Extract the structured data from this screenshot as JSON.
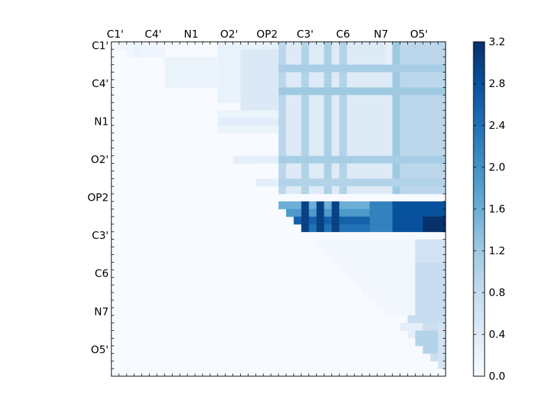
{
  "chart_data": {
    "type": "heatmap",
    "title": "",
    "xlabel": "",
    "ylabel": "",
    "x_tick_labels": [
      "C1'",
      "C4'",
      "N1",
      "O2'",
      "OP2",
      "C3'",
      "C6",
      "N7",
      "O5'"
    ],
    "y_tick_labels": [
      "C1'",
      "C4'",
      "N1",
      "O2'",
      "OP2",
      "C3'",
      "C6",
      "N7",
      "O5'"
    ],
    "grid": false,
    "upper_triangle_only": true,
    "n_cells": 44,
    "colormap": "Blues",
    "colorbar": {
      "min": 0.0,
      "max": 3.2,
      "ticks": [
        "0.0",
        "0.4",
        "0.8",
        "1.2",
        "1.6",
        "2.0",
        "2.4",
        "2.8",
        "3.2"
      ]
    },
    "bands": [
      {
        "rows": [
          1,
          2
        ],
        "cols": [
          2,
          3
        ],
        "value": 0.12
      },
      {
        "rows": [
          1,
          2
        ],
        "cols": [
          4,
          4
        ],
        "value": 0.2
      },
      {
        "rows": [
          1,
          2
        ],
        "cols": [
          5,
          7
        ],
        "value": 0.14
      },
      {
        "rows": [
          3,
          6
        ],
        "cols": [
          8,
          14
        ],
        "value": 0.18
      },
      {
        "rows": [
          1,
          8
        ],
        "cols": [
          15,
          22
        ],
        "value": 0.22
      },
      {
        "rows": [
          2,
          10
        ],
        "cols": [
          18,
          22
        ],
        "value": 0.45
      },
      {
        "rows": [
          10,
          12
        ],
        "cols": [
          15,
          22
        ],
        "value": 0.2
      },
      {
        "rows": [
          1,
          20
        ],
        "cols": [
          23,
          44
        ],
        "value": 0.4
      },
      {
        "rows": [
          1,
          4
        ],
        "cols": [
          37,
          44
        ],
        "value": 0.3
      },
      {
        "rows": [
          1,
          20
        ],
        "cols": [
          23,
          23
        ],
        "value": 0.9
      },
      {
        "rows": [
          1,
          20
        ],
        "cols": [
          26,
          26
        ],
        "value": 1.0
      },
      {
        "rows": [
          1,
          20
        ],
        "cols": [
          29,
          29
        ],
        "value": 1.05
      },
      {
        "rows": [
          1,
          20
        ],
        "cols": [
          31,
          31
        ],
        "value": 1.0
      },
      {
        "rows": [
          1,
          20
        ],
        "cols": [
          38,
          38
        ],
        "value": 1.2
      },
      {
        "rows": [
          1,
          20
        ],
        "cols": [
          39,
          44
        ],
        "value": 0.9
      },
      {
        "rows": [
          4,
          4
        ],
        "cols": [
          23,
          44
        ],
        "value": 1.1
      },
      {
        "rows": [
          7,
          7
        ],
        "cols": [
          23,
          44
        ],
        "value": 1.2
      },
      {
        "rows": [
          16,
          16
        ],
        "cols": [
          23,
          44
        ],
        "value": 1.1
      },
      {
        "rows": [
          19,
          19
        ],
        "cols": [
          23,
          44
        ],
        "value": 1.0
      },
      {
        "rows": [
          11,
          11
        ],
        "cols": [
          15,
          22
        ],
        "value": 0.35
      },
      {
        "rows": [
          16,
          16
        ],
        "cols": [
          15,
          22
        ],
        "value": 0.3
      },
      {
        "rows": [
          19,
          19
        ],
        "cols": [
          15,
          22
        ],
        "value": 0.3
      },
      {
        "rows": [
          22,
          22
        ],
        "cols": [
          23,
          44
        ],
        "value": 1.6
      },
      {
        "rows": [
          23,
          23
        ],
        "cols": [
          23,
          44
        ],
        "value": 1.9
      },
      {
        "rows": [
          24,
          24
        ],
        "cols": [
          24,
          44
        ],
        "value": 2.6
      },
      {
        "rows": [
          25,
          25
        ],
        "cols": [
          25,
          44
        ],
        "value": 2.4
      },
      {
        "rows": [
          22,
          25
        ],
        "cols": [
          26,
          26
        ],
        "value": 3.0
      },
      {
        "rows": [
          22,
          25
        ],
        "cols": [
          28,
          28
        ],
        "value": 3.0
      },
      {
        "rows": [
          22,
          25
        ],
        "cols": [
          30,
          30
        ],
        "value": 3.0
      },
      {
        "rows": [
          22,
          25
        ],
        "cols": [
          35,
          44
        ],
        "value": 2.2
      },
      {
        "rows": [
          22,
          25
        ],
        "cols": [
          38,
          44
        ],
        "value": 2.8
      },
      {
        "rows": [
          24,
          25
        ],
        "cols": [
          42,
          44
        ],
        "value": 3.2
      },
      {
        "rows": [
          27,
          44
        ],
        "cols": [
          40,
          44
        ],
        "value": 0.6
      },
      {
        "rows": [
          30,
          37
        ],
        "cols": [
          40,
          44
        ],
        "value": 0.75
      },
      {
        "rows": [
          38,
          44
        ],
        "cols": [
          41,
          43
        ],
        "value": 0.7
      },
      {
        "rows": [
          27,
          36
        ],
        "cols": [
          27,
          40
        ],
        "value": 0.1
      },
      {
        "rows": [
          38,
          44
        ],
        "cols": [
          38,
          41
        ],
        "value": 0.3
      },
      {
        "rows": [
          39,
          41
        ],
        "cols": [
          41,
          43
        ],
        "value": 1.0
      }
    ]
  }
}
